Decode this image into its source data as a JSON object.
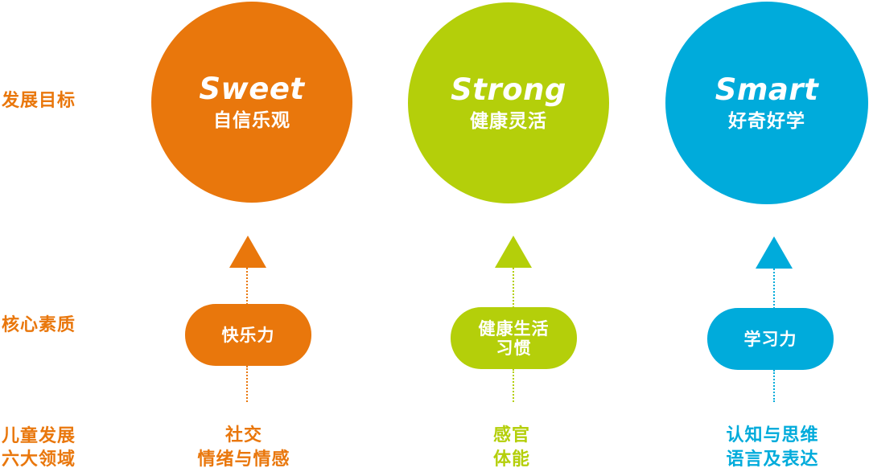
{
  "row_labels": {
    "goal": "发展目标",
    "core": "核心素质",
    "domains_line1": "儿童发展",
    "domains_line2": "六大领域"
  },
  "columns": [
    {
      "en": "Sweet",
      "zh": "自信乐观",
      "quality": [
        "快乐力"
      ],
      "domains": [
        "社交",
        "情绪与情感"
      ],
      "color": "#e9770c"
    },
    {
      "en": "Strong",
      "zh": "健康灵活",
      "quality": [
        "健康生活",
        "习惯"
      ],
      "domains": [
        "感官",
        "体能"
      ],
      "color": "#b4cf0a"
    },
    {
      "en": "Smart",
      "zh": "好奇好学",
      "quality": [
        "学习力"
      ],
      "domains": [
        "认知与思维",
        "语言及表达"
      ],
      "color": "#00abdb"
    }
  ],
  "colors": {
    "label": "#e9770c"
  }
}
